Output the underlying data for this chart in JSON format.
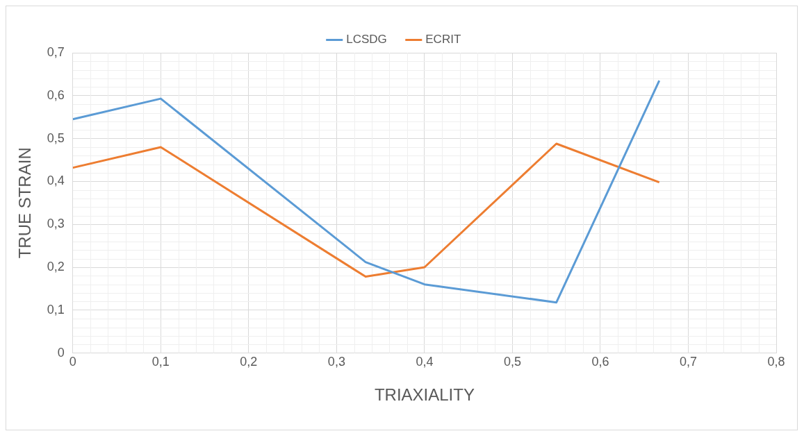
{
  "chart_data": {
    "type": "line",
    "xlabel": "TRIAXIALITY",
    "ylabel": "TRUE STRAIN",
    "x": [
      0,
      0.1,
      0.333,
      0.4,
      0.55,
      0.667
    ],
    "series": [
      {
        "name": "LCSDG",
        "color": "#5b9bd5",
        "values": [
          0.545,
          0.593,
          0.212,
          0.16,
          0.118,
          0.635
        ]
      },
      {
        "name": "ECRIT",
        "color": "#ed7d31",
        "values": [
          0.432,
          0.48,
          0.178,
          0.2,
          0.488,
          0.398
        ]
      }
    ],
    "xlim": [
      0,
      0.8
    ],
    "ylim": [
      0,
      0.7
    ],
    "xticks": [
      0,
      {
        "value": 0.1,
        "label": "0,1"
      },
      {
        "value": 0.2,
        "label": "0,2"
      },
      {
        "value": 0.3,
        "label": "0,3"
      },
      {
        "value": 0.4,
        "label": "0,4"
      },
      {
        "value": 0.5,
        "label": "0,5"
      },
      {
        "value": 0.6,
        "label": "0,6"
      },
      {
        "value": 0.7,
        "label": "0,7"
      },
      {
        "value": 0.8,
        "label": "0,8"
      }
    ],
    "yticks": [
      0,
      {
        "value": 0.1,
        "label": "0,1"
      },
      {
        "value": 0.2,
        "label": "0,2"
      },
      {
        "value": 0.3,
        "label": "0,3"
      },
      {
        "value": 0.4,
        "label": "0,4"
      },
      {
        "value": 0.5,
        "label": "0,5"
      },
      {
        "value": 0.6,
        "label": "0,6"
      },
      {
        "value": 0.7,
        "label": "0,7"
      }
    ],
    "grid": true,
    "legend": "top",
    "marker": "none",
    "line_style": "solid"
  }
}
